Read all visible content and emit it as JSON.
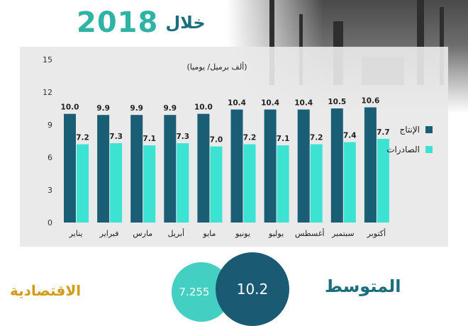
{
  "header": {
    "title_word": "خلال",
    "title_year": "2018"
  },
  "chart_data": {
    "type": "bar",
    "unit_label": "(ألف برميل/ يوميا)",
    "categories": [
      "يناير",
      "فبراير",
      "مارس",
      "أبريل",
      "مايو",
      "يونيو",
      "يوليو",
      "أغسطس",
      "سبتمبر",
      "أكتوبر"
    ],
    "series": [
      {
        "name": "الإنتاج",
        "color": "#1a5e76",
        "values": [
          10.0,
          9.9,
          9.9,
          9.9,
          10.0,
          10.4,
          10.4,
          10.4,
          10.5,
          10.6
        ],
        "labels": [
          "10.0",
          "9.9",
          "9.9",
          "9.9",
          "10.0",
          "10.4",
          "10.4",
          "10.4",
          "10.5",
          "10.6"
        ]
      },
      {
        "name": "الصادرات",
        "color": "#3de3d2",
        "values": [
          7.2,
          7.3,
          7.1,
          7.3,
          7.0,
          7.2,
          7.1,
          7.2,
          7.4,
          7.7
        ],
        "labels": [
          "7.2",
          "7.3",
          "7.1",
          "7.3",
          "7.0",
          "7.2",
          "7.1",
          "7.2",
          "7.4",
          "7.7"
        ]
      }
    ],
    "ylim": [
      0,
      15
    ],
    "yticks": [
      0,
      3,
      6,
      9,
      12,
      15
    ],
    "grid": false,
    "legend": "right"
  },
  "average": {
    "title": "المتوسط",
    "production": "10.2",
    "exports": "7.255"
  },
  "brand": {
    "name": "الاقتصادية"
  }
}
